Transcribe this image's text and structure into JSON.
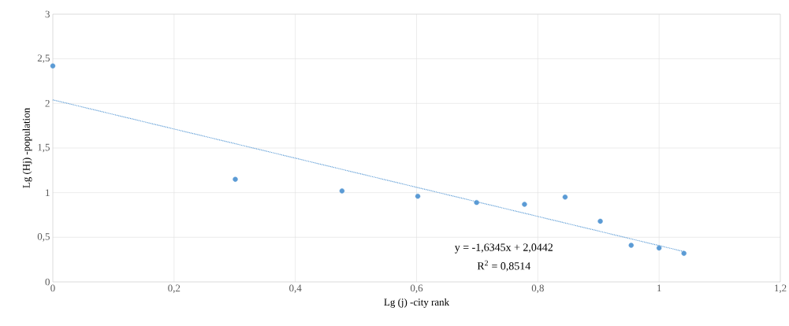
{
  "chart_data": {
    "type": "scatter",
    "xlabel": "Lg (j) -city rank",
    "ylabel": "Lg (Hj) -population",
    "grid": true,
    "xlim": [
      0,
      1.2
    ],
    "ylim": [
      0,
      3
    ],
    "xticks": [
      0,
      {
        "value": 0.2,
        "label": "0,2"
      },
      {
        "value": 0.4,
        "label": "0,4"
      },
      {
        "value": 0.6,
        "label": "0,6"
      },
      {
        "value": 0.8,
        "label": "0,8"
      },
      1,
      {
        "value": 1.2,
        "label": "1,2"
      }
    ],
    "yticks": [
      0,
      {
        "value": 0.5,
        "label": "0,5"
      },
      1,
      {
        "value": 1.5,
        "label": "1,5"
      },
      2,
      {
        "value": 2.5,
        "label": "2,5"
      },
      3
    ],
    "series": [
      {
        "marker": "circle",
        "color": "#5b9bd5",
        "x": [
          0,
          0.301,
          0.477,
          0.602,
          0.699,
          0.778,
          0.845,
          0.903,
          0.954,
          1,
          1.041
        ],
        "values": [
          2.42,
          1.15,
          1.02,
          0.96,
          0.89,
          0.87,
          0.95,
          0.68,
          0.41,
          0.38,
          0.32
        ]
      },
      {
        "type": "line",
        "color": "#5b9bd5",
        "line_style": "dotted",
        "marker": "none",
        "x": [
          0,
          1.041
        ],
        "values": [
          2.04,
          0.34
        ]
      }
    ],
    "annotations": [
      "y = -1,6345x + 2,0442",
      "R$^{2}$ = 0,8514"
    ]
  }
}
